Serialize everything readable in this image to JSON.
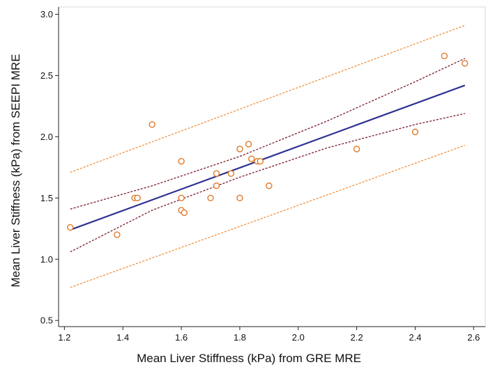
{
  "chart_data": {
    "type": "scatter",
    "title": "",
    "xlabel": "Mean Liver Stiffness (kPa) from GRE MRE",
    "ylabel": "Mean Liver Stiffness (kPa) from SEEPI MRE",
    "xlim": [
      1.18,
      2.64
    ],
    "ylim": [
      0.45,
      3.06
    ],
    "x_ticks": [
      "1.2",
      "1.4",
      "1.6",
      "1.8",
      "2.0",
      "2.2",
      "2.4",
      "2.6"
    ],
    "y_ticks": [
      "0.5",
      "1.0",
      "1.5",
      "2.0",
      "2.5",
      "3.0"
    ],
    "grid": false,
    "points": [
      {
        "x": 1.22,
        "y": 1.26
      },
      {
        "x": 1.38,
        "y": 1.2
      },
      {
        "x": 1.44,
        "y": 1.5
      },
      {
        "x": 1.45,
        "y": 1.5
      },
      {
        "x": 1.5,
        "y": 2.1
      },
      {
        "x": 1.6,
        "y": 1.8
      },
      {
        "x": 1.6,
        "y": 1.5
      },
      {
        "x": 1.6,
        "y": 1.4
      },
      {
        "x": 1.61,
        "y": 1.38
      },
      {
        "x": 1.7,
        "y": 1.5
      },
      {
        "x": 1.72,
        "y": 1.7
      },
      {
        "x": 1.72,
        "y": 1.6
      },
      {
        "x": 1.77,
        "y": 1.7
      },
      {
        "x": 1.8,
        "y": 1.9
      },
      {
        "x": 1.8,
        "y": 1.5
      },
      {
        "x": 1.83,
        "y": 1.94
      },
      {
        "x": 1.84,
        "y": 1.82
      },
      {
        "x": 1.86,
        "y": 1.8
      },
      {
        "x": 1.87,
        "y": 1.8
      },
      {
        "x": 1.9,
        "y": 1.6
      },
      {
        "x": 2.2,
        "y": 1.9
      },
      {
        "x": 2.4,
        "y": 2.04
      },
      {
        "x": 2.5,
        "y": 2.66
      },
      {
        "x": 2.57,
        "y": 2.6
      }
    ],
    "regression_line": {
      "x": [
        1.22,
        2.57
      ],
      "y": [
        1.24,
        2.42
      ],
      "color": "#2e3192"
    },
    "confidence_band": {
      "x": [
        1.22,
        1.5,
        1.8,
        2.1,
        2.4,
        2.57
      ],
      "upper": [
        1.41,
        1.6,
        1.84,
        2.13,
        2.45,
        2.64
      ],
      "lower": [
        1.06,
        1.4,
        1.67,
        1.91,
        2.1,
        2.19
      ],
      "color": "#7a1a2a"
    },
    "prediction_band": {
      "x": [
        1.22,
        2.57
      ],
      "upper": [
        1.71,
        2.91
      ],
      "lower": [
        0.77,
        1.93
      ],
      "color": "#f0903a"
    },
    "marker_color": "#e07a2a"
  }
}
